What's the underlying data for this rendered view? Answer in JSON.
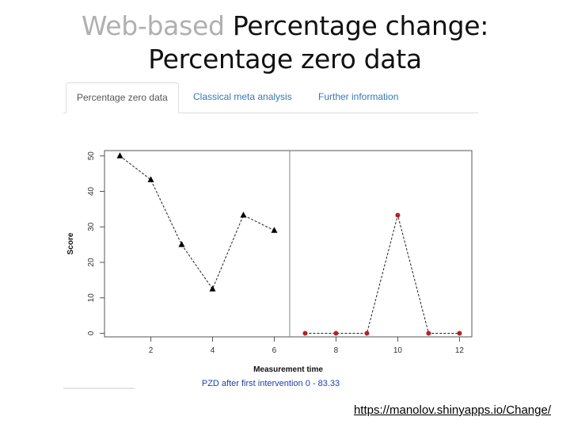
{
  "slide": {
    "title_prefix": "Web-based",
    "title_rest": " Percentage change:",
    "title_line2": "Percentage zero data",
    "link_text": "https://manolov.shinyapps.io/Change/"
  },
  "tabs": [
    {
      "label": "Percentage zero data",
      "active": true
    },
    {
      "label": "Classical meta analysis",
      "active": false
    },
    {
      "label": "Further information",
      "active": false
    }
  ],
  "result_text": "PZD after first intervention 0 - 83.33",
  "chart_data": {
    "type": "scatter",
    "xlabel": "Measurement time",
    "ylabel": "Score",
    "xlim": [
      0.5,
      12.4
    ],
    "ylim": [
      -1,
      51.5
    ],
    "xticks": [
      2,
      4,
      6,
      8,
      10,
      12
    ],
    "yticks": [
      0,
      10,
      20,
      30,
      40,
      50
    ],
    "phase_boundary_x": 6.5,
    "series": [
      {
        "marker": "triangle",
        "color": "#000000",
        "x": [
          1,
          2,
          3,
          4,
          5,
          6
        ],
        "y": [
          50,
          43.3,
          25,
          12.5,
          33.3,
          29
        ]
      },
      {
        "marker": "circle",
        "color": "#b22222",
        "x": [
          7,
          8,
          9,
          10,
          11,
          12
        ],
        "y": [
          0,
          0,
          0,
          33.3,
          0,
          0
        ]
      }
    ]
  }
}
